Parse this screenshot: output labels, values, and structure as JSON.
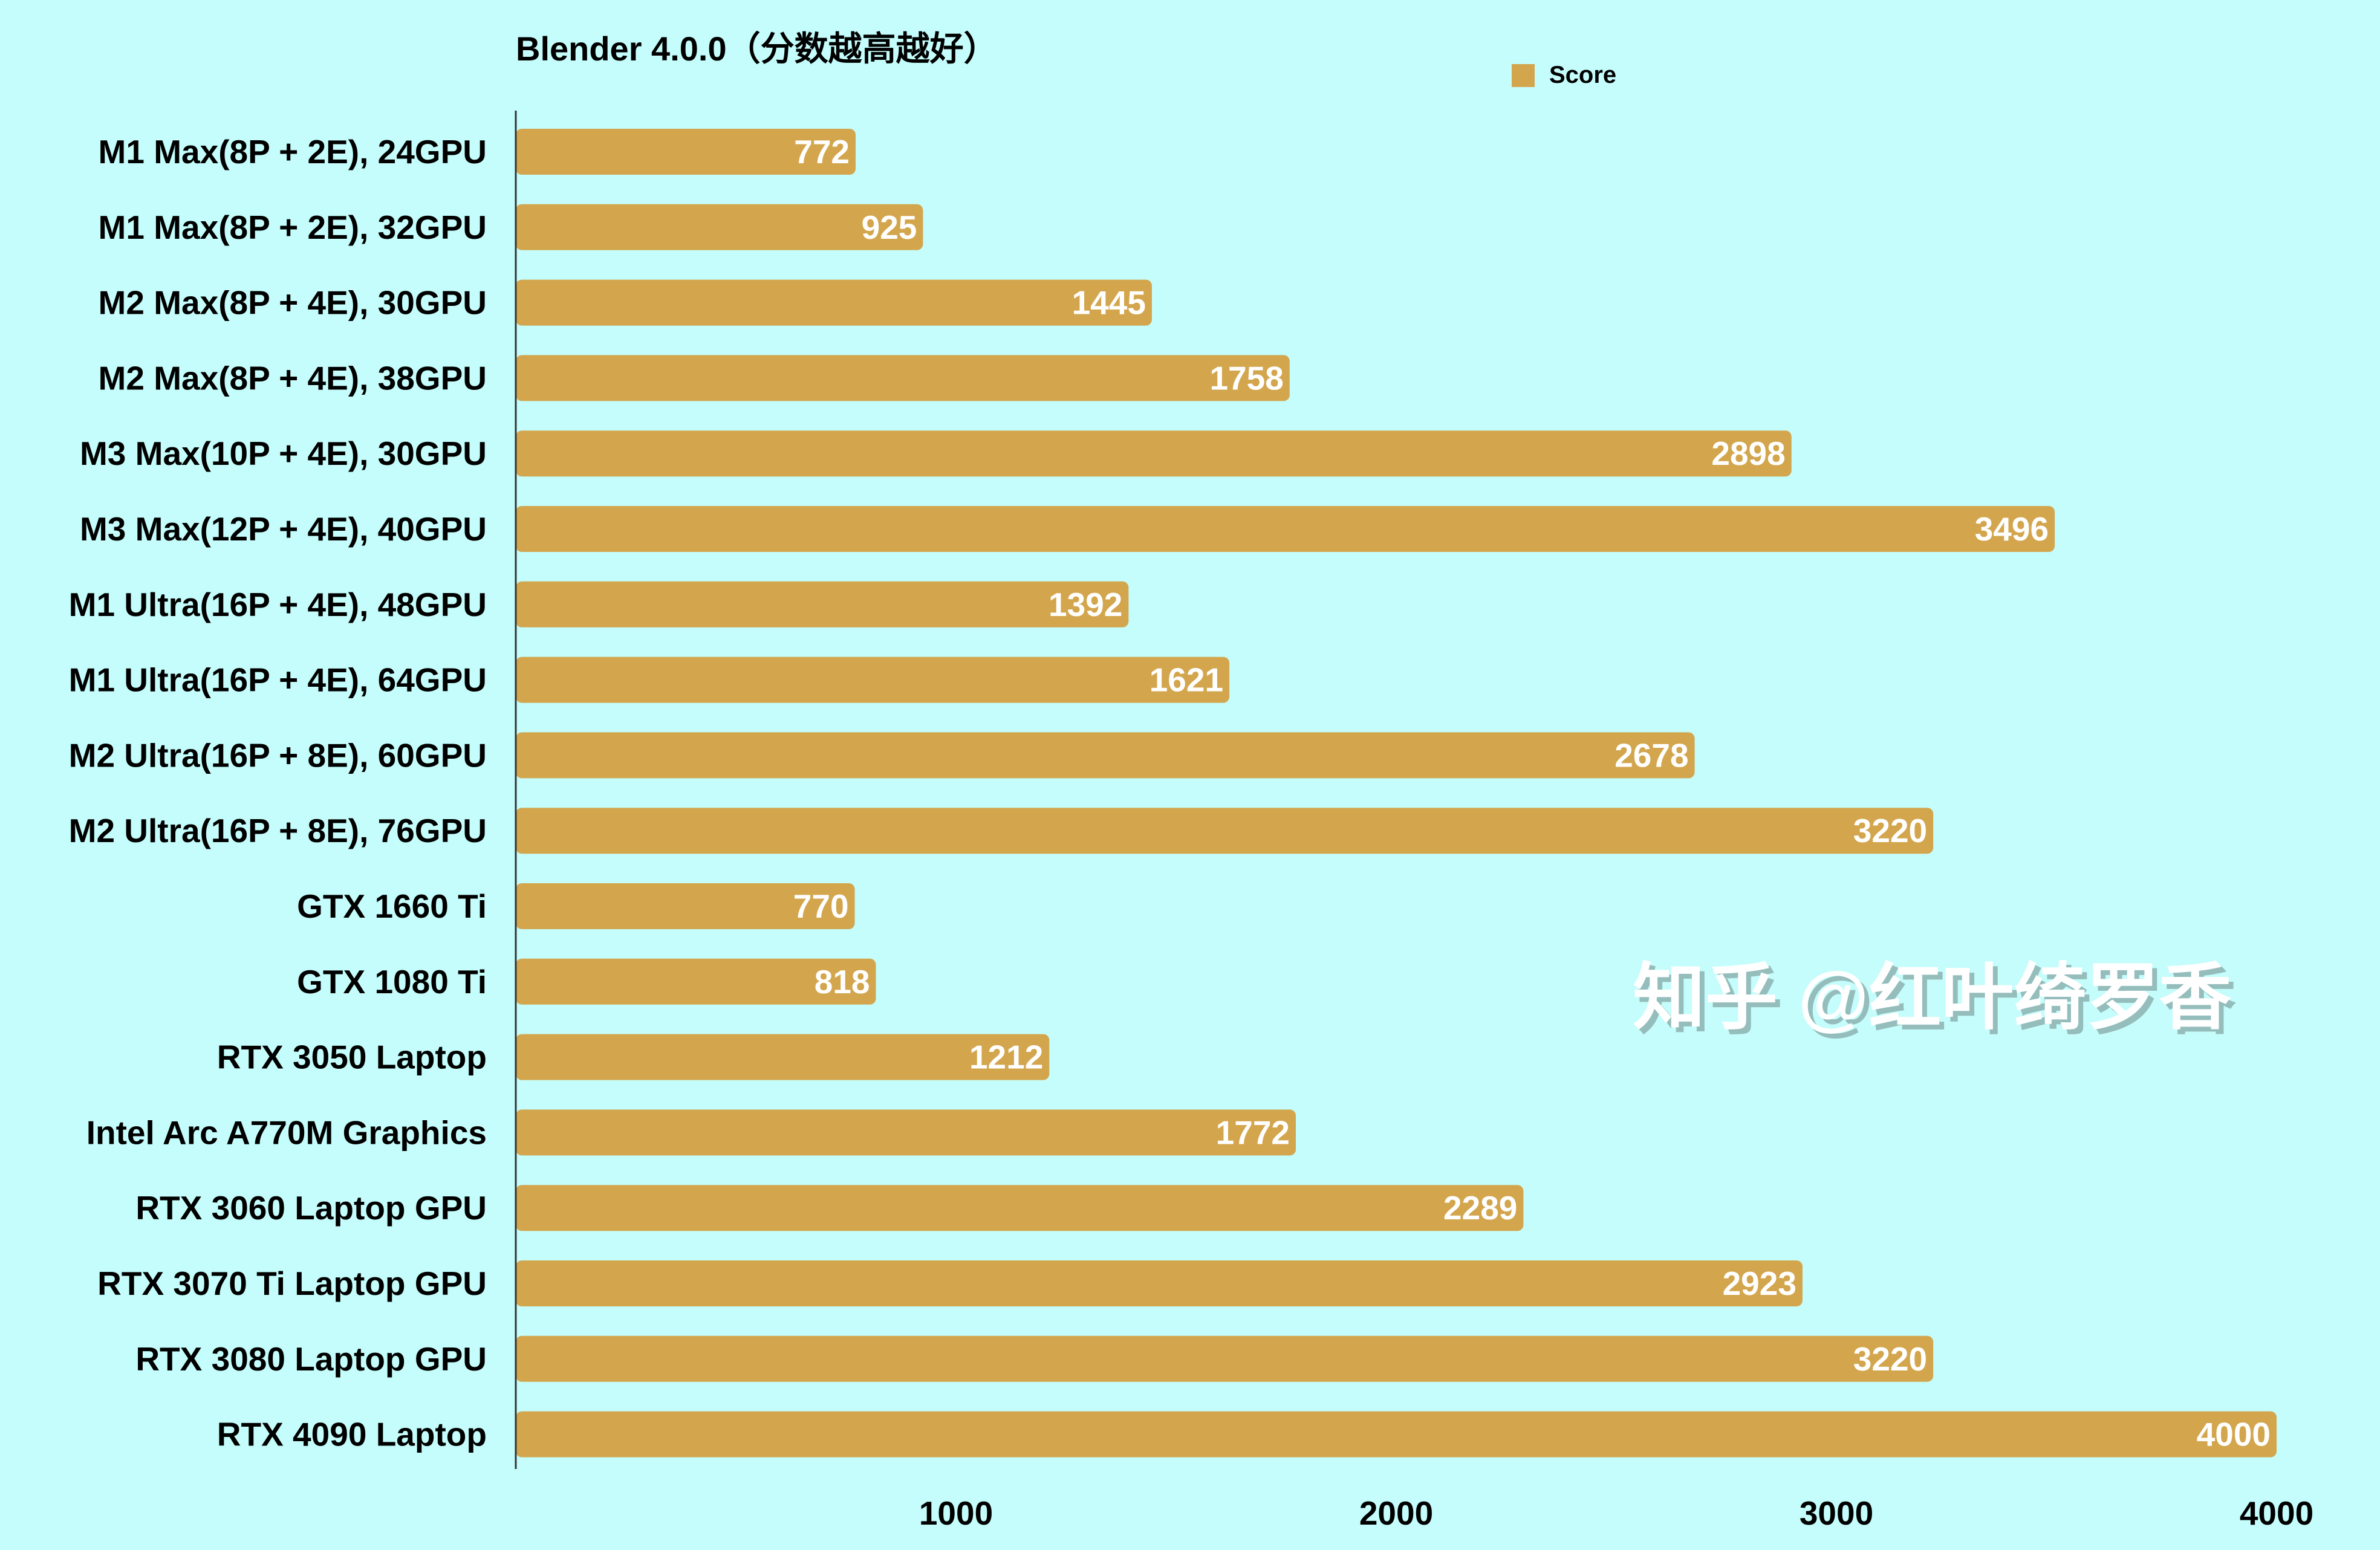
{
  "chart_data": {
    "type": "bar",
    "orientation": "horizontal",
    "title": "Blender 4.0.0（分数越高越好）",
    "legend": {
      "position": "top-right",
      "entries": [
        "Score"
      ]
    },
    "categories": [
      "M1 Max(8P + 2E), 24GPU",
      "M1 Max(8P + 2E), 32GPU",
      "M2 Max(8P + 4E), 30GPU",
      "M2 Max(8P + 4E), 38GPU",
      "M3 Max(10P + 4E), 30GPU",
      "M3 Max(12P + 4E), 40GPU",
      "M1 Ultra(16P + 4E), 48GPU",
      "M1 Ultra(16P + 4E), 64GPU",
      "M2 Ultra(16P + 8E), 60GPU",
      "M2 Ultra(16P + 8E), 76GPU",
      "GTX 1660 Ti",
      "GTX 1080 Ti",
      "RTX 3050 Laptop",
      "Intel Arc A770M Graphics",
      "RTX 3060 Laptop GPU",
      "RTX 3070 Ti Laptop GPU",
      "RTX 3080 Laptop GPU",
      "RTX 4090 Laptop"
    ],
    "series": [
      {
        "name": "Score",
        "values": [
          772,
          925,
          1445,
          1758,
          2898,
          3496,
          1392,
          1621,
          2678,
          3220,
          770,
          818,
          1212,
          1772,
          2289,
          2923,
          3220,
          4000
        ]
      }
    ],
    "xlim": [
      0,
      4000
    ],
    "xticks": [
      1000,
      2000,
      3000,
      4000
    ],
    "grid": false,
    "bar_color": "#d3a64e",
    "label_color": "#ffffff",
    "background": "#c4fdfb"
  },
  "watermark": "知乎 @红叶绮罗香"
}
